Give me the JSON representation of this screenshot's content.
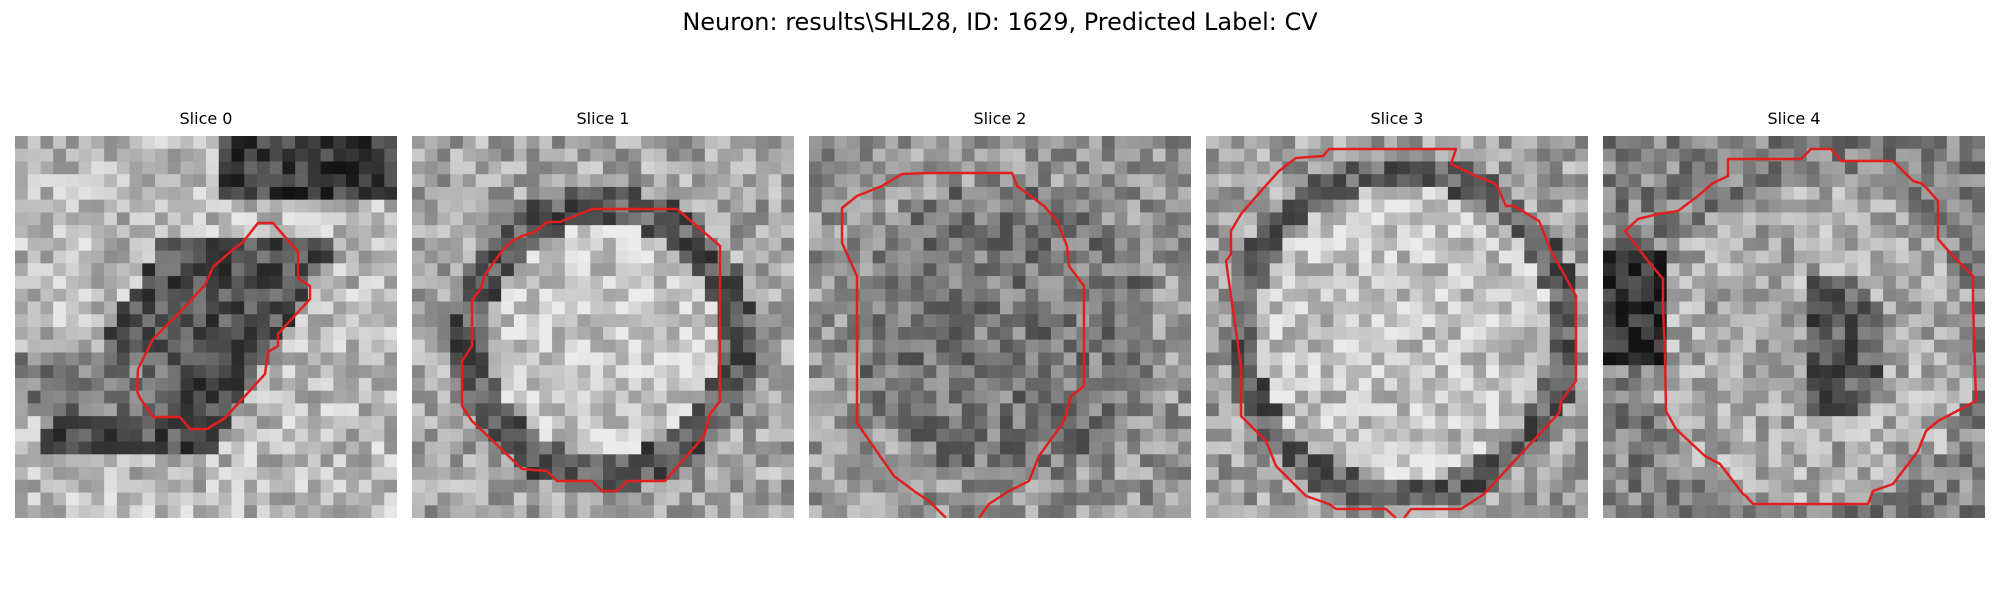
{
  "title": "Neuron: results\\SHL28, ID: 1629, Predicted Label: CV",
  "panels": [
    {
      "title": "Slice 0",
      "pattern": "cell"
    },
    {
      "title": "Slice 1",
      "pattern": "ring"
    },
    {
      "title": "Slice 2",
      "pattern": "dark"
    },
    {
      "title": "Slice 3",
      "pattern": "lightring"
    },
    {
      "title": "Slice 4",
      "pattern": "blotch"
    }
  ],
  "colors": {
    "contour": "#e02020"
  }
}
